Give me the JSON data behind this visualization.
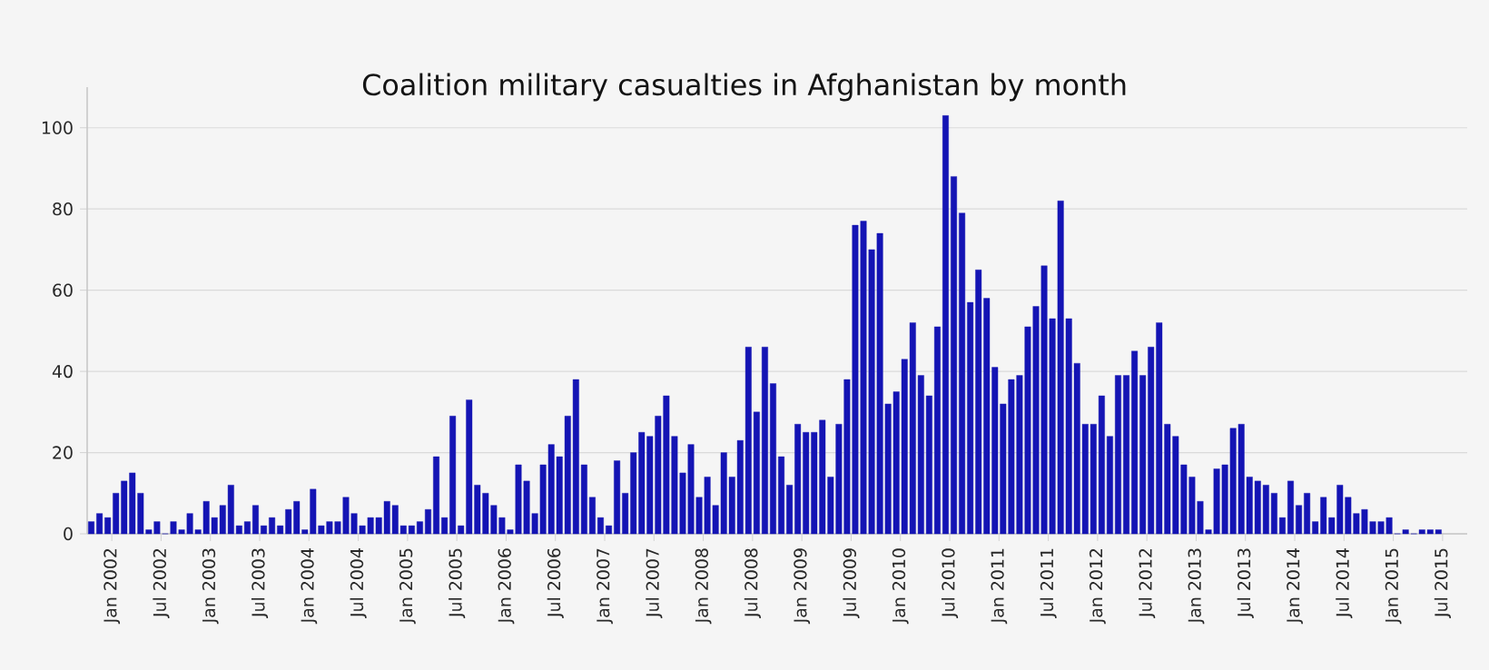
{
  "chart_data": {
    "type": "bar",
    "title": "Coalition military casualties in Afghanistan by month",
    "x": [
      "2001-10",
      "2001-11",
      "2001-12",
      "2002-01",
      "2002-02",
      "2002-03",
      "2002-04",
      "2002-05",
      "2002-06",
      "2002-07",
      "2002-08",
      "2002-09",
      "2002-10",
      "2002-11",
      "2002-12",
      "2003-01",
      "2003-02",
      "2003-03",
      "2003-04",
      "2003-05",
      "2003-06",
      "2003-07",
      "2003-08",
      "2003-09",
      "2003-10",
      "2003-11",
      "2003-12",
      "2004-01",
      "2004-02",
      "2004-03",
      "2004-04",
      "2004-05",
      "2004-06",
      "2004-07",
      "2004-08",
      "2004-09",
      "2004-10",
      "2004-11",
      "2004-12",
      "2005-01",
      "2005-02",
      "2005-03",
      "2005-04",
      "2005-05",
      "2005-06",
      "2005-07",
      "2005-08",
      "2005-09",
      "2005-10",
      "2005-11",
      "2005-12",
      "2006-01",
      "2006-02",
      "2006-03",
      "2006-04",
      "2006-05",
      "2006-06",
      "2006-07",
      "2006-08",
      "2006-09",
      "2006-10",
      "2006-11",
      "2006-12",
      "2007-01",
      "2007-02",
      "2007-03",
      "2007-04",
      "2007-05",
      "2007-06",
      "2007-07",
      "2007-08",
      "2007-09",
      "2007-10",
      "2007-11",
      "2007-12",
      "2008-01",
      "2008-02",
      "2008-03",
      "2008-04",
      "2008-05",
      "2008-06",
      "2008-07",
      "2008-08",
      "2008-09",
      "2008-10",
      "2008-11",
      "2008-12",
      "2009-01",
      "2009-02",
      "2009-03",
      "2009-04",
      "2009-05",
      "2009-06",
      "2009-07",
      "2009-08",
      "2009-09",
      "2009-10",
      "2009-11",
      "2009-12",
      "2010-01",
      "2010-02",
      "2010-03",
      "2010-04",
      "2010-05",
      "2010-06",
      "2010-07",
      "2010-08",
      "2010-09",
      "2010-10",
      "2010-11",
      "2010-12",
      "2011-01",
      "2011-02",
      "2011-03",
      "2011-04",
      "2011-05",
      "2011-06",
      "2011-07",
      "2011-08",
      "2011-09",
      "2011-10",
      "2011-11",
      "2011-12",
      "2012-01",
      "2012-02",
      "2012-03",
      "2012-04",
      "2012-05",
      "2012-06",
      "2012-07",
      "2012-08",
      "2012-09",
      "2012-10",
      "2012-11",
      "2012-12",
      "2013-01",
      "2013-02",
      "2013-03",
      "2013-04",
      "2013-05",
      "2013-06",
      "2013-07",
      "2013-08",
      "2013-09",
      "2013-10",
      "2013-11",
      "2013-12",
      "2014-01",
      "2014-02",
      "2014-03",
      "2014-04",
      "2014-05",
      "2014-06",
      "2014-07",
      "2014-08",
      "2014-09",
      "2014-10",
      "2014-11",
      "2014-12",
      "2015-01",
      "2015-02",
      "2015-03",
      "2015-04",
      "2015-05",
      "2015-06"
    ],
    "values": [
      3,
      5,
      4,
      10,
      13,
      15,
      10,
      1,
      3,
      0,
      3,
      1,
      5,
      1,
      8,
      4,
      7,
      12,
      2,
      3,
      7,
      2,
      4,
      2,
      6,
      8,
      1,
      11,
      2,
      3,
      3,
      9,
      5,
      2,
      4,
      4,
      8,
      7,
      2,
      2,
      3,
      6,
      19,
      4,
      29,
      2,
      33,
      12,
      10,
      7,
      4,
      1,
      17,
      13,
      5,
      17,
      22,
      19,
      29,
      38,
      17,
      9,
      4,
      2,
      18,
      10,
      20,
      25,
      24,
      29,
      34,
      24,
      15,
      22,
      9,
      14,
      7,
      20,
      14,
      23,
      46,
      30,
      46,
      37,
      19,
      12,
      27,
      25,
      25,
      28,
      14,
      27,
      38,
      76,
      77,
      70,
      74,
      32,
      35,
      43,
      52,
      39,
      34,
      51,
      103,
      88,
      79,
      57,
      65,
      58,
      41,
      32,
      38,
      39,
      51,
      56,
      66,
      53,
      82,
      53,
      42,
      27,
      27,
      34,
      24,
      39,
      39,
      45,
      39,
      46,
      52,
      27,
      24,
      17,
      14,
      8,
      1,
      16,
      17,
      26,
      27,
      14,
      13,
      12,
      10,
      4,
      13,
      7,
      10,
      3,
      9,
      4,
      12,
      9,
      5,
      6,
      3,
      3,
      4,
      0,
      1,
      0,
      1,
      1,
      1
    ],
    "color": "#1414b4",
    "xlim": [
      "2001-10",
      "2015-10"
    ],
    "xticks": [
      {
        "value": "2002-01",
        "label": "Jan 2002"
      },
      {
        "value": "2002-07",
        "label": "Jul 2002"
      },
      {
        "value": "2003-01",
        "label": "Jan 2003"
      },
      {
        "value": "2003-07",
        "label": "Jul 2003"
      },
      {
        "value": "2004-01",
        "label": "Jan 2004"
      },
      {
        "value": "2004-07",
        "label": "Jul 2004"
      },
      {
        "value": "2005-01",
        "label": "Jan 2005"
      },
      {
        "value": "2005-07",
        "label": "Jul 2005"
      },
      {
        "value": "2006-01",
        "label": "Jan 2006"
      },
      {
        "value": "2006-07",
        "label": "Jul 2006"
      },
      {
        "value": "2007-01",
        "label": "Jan 2007"
      },
      {
        "value": "2007-07",
        "label": "Jul 2007"
      },
      {
        "value": "2008-01",
        "label": "Jan 2008"
      },
      {
        "value": "2008-07",
        "label": "Jul 2008"
      },
      {
        "value": "2009-01",
        "label": "Jan 2009"
      },
      {
        "value": "2009-07",
        "label": "Jul 2009"
      },
      {
        "value": "2010-01",
        "label": "Jan 2010"
      },
      {
        "value": "2010-07",
        "label": "Jul 2010"
      },
      {
        "value": "2011-01",
        "label": "Jan 2011"
      },
      {
        "value": "2011-07",
        "label": "Jul 2011"
      },
      {
        "value": "2012-01",
        "label": "Jan 2012"
      },
      {
        "value": "2012-07",
        "label": "Jul 2012"
      },
      {
        "value": "2013-01",
        "label": "Jan 2013"
      },
      {
        "value": "2013-07",
        "label": "Jul 2013"
      },
      {
        "value": "2014-01",
        "label": "Jan 2014"
      },
      {
        "value": "2014-07",
        "label": "Jul 2014"
      },
      {
        "value": "2015-01",
        "label": "Jan 2015"
      },
      {
        "value": "2015-07",
        "label": "Jul 2015"
      }
    ],
    "ylim": [
      0,
      110
    ],
    "yticks": [
      0,
      20,
      40,
      60,
      80,
      100
    ],
    "grid": "y"
  }
}
